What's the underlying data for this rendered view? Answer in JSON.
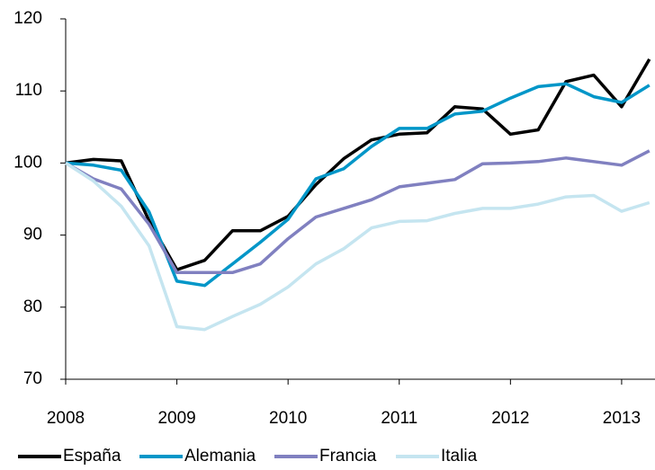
{
  "chart_data": {
    "type": "line",
    "x": [
      2008,
      2008.25,
      2008.5,
      2008.75,
      2009,
      2009.25,
      2009.5,
      2009.75,
      2010,
      2010.25,
      2010.5,
      2010.75,
      2011,
      2011.25,
      2011.5,
      2011.75,
      2012,
      2012.25,
      2012.5,
      2012.75,
      2013,
      2013.25
    ],
    "series": [
      {
        "name": "España",
        "color": "#000000",
        "values": [
          100,
          100.5,
          100.3,
          92,
          85.2,
          86.5,
          90.6,
          90.6,
          92.6,
          97,
          100.6,
          103.2,
          104,
          104.2,
          107.8,
          107.5,
          104,
          104.6,
          111.3,
          112.2,
          107.8,
          114.4
        ]
      },
      {
        "name": "Alemania",
        "color": "#0096c8",
        "values": [
          100,
          99.7,
          99,
          93.2,
          83.6,
          83,
          86,
          89,
          92.2,
          97.8,
          99.2,
          102.3,
          104.8,
          104.8,
          106.8,
          107.2,
          109,
          110.6,
          111,
          109.2,
          108.4,
          110.8
        ]
      },
      {
        "name": "Francia",
        "color": "#8080c0",
        "values": [
          100,
          97.8,
          96.4,
          91.5,
          84.8,
          84.8,
          84.8,
          86,
          89.5,
          92.5,
          93.7,
          94.9,
          96.7,
          97.2,
          97.7,
          99.9,
          100,
          100.2,
          100.7,
          100.2,
          99.7,
          101.7
        ]
      },
      {
        "name": "Italia",
        "color": "#c5e5f0",
        "values": [
          100,
          97.5,
          94,
          88.5,
          77.3,
          76.9,
          78.7,
          80.4,
          82.8,
          86,
          88.1,
          91,
          91.9,
          92,
          93,
          93.7,
          93.7,
          94.3,
          95.3,
          95.5,
          93.3,
          94.5
        ]
      }
    ],
    "xlim": [
      2008,
      2013.3
    ],
    "xticks": [
      2008,
      2009,
      2010,
      2011,
      2012,
      2013
    ],
    "ylim": [
      70,
      120
    ],
    "yticks": [
      70,
      80,
      90,
      100,
      110,
      120
    ],
    "legend": "bottom"
  }
}
